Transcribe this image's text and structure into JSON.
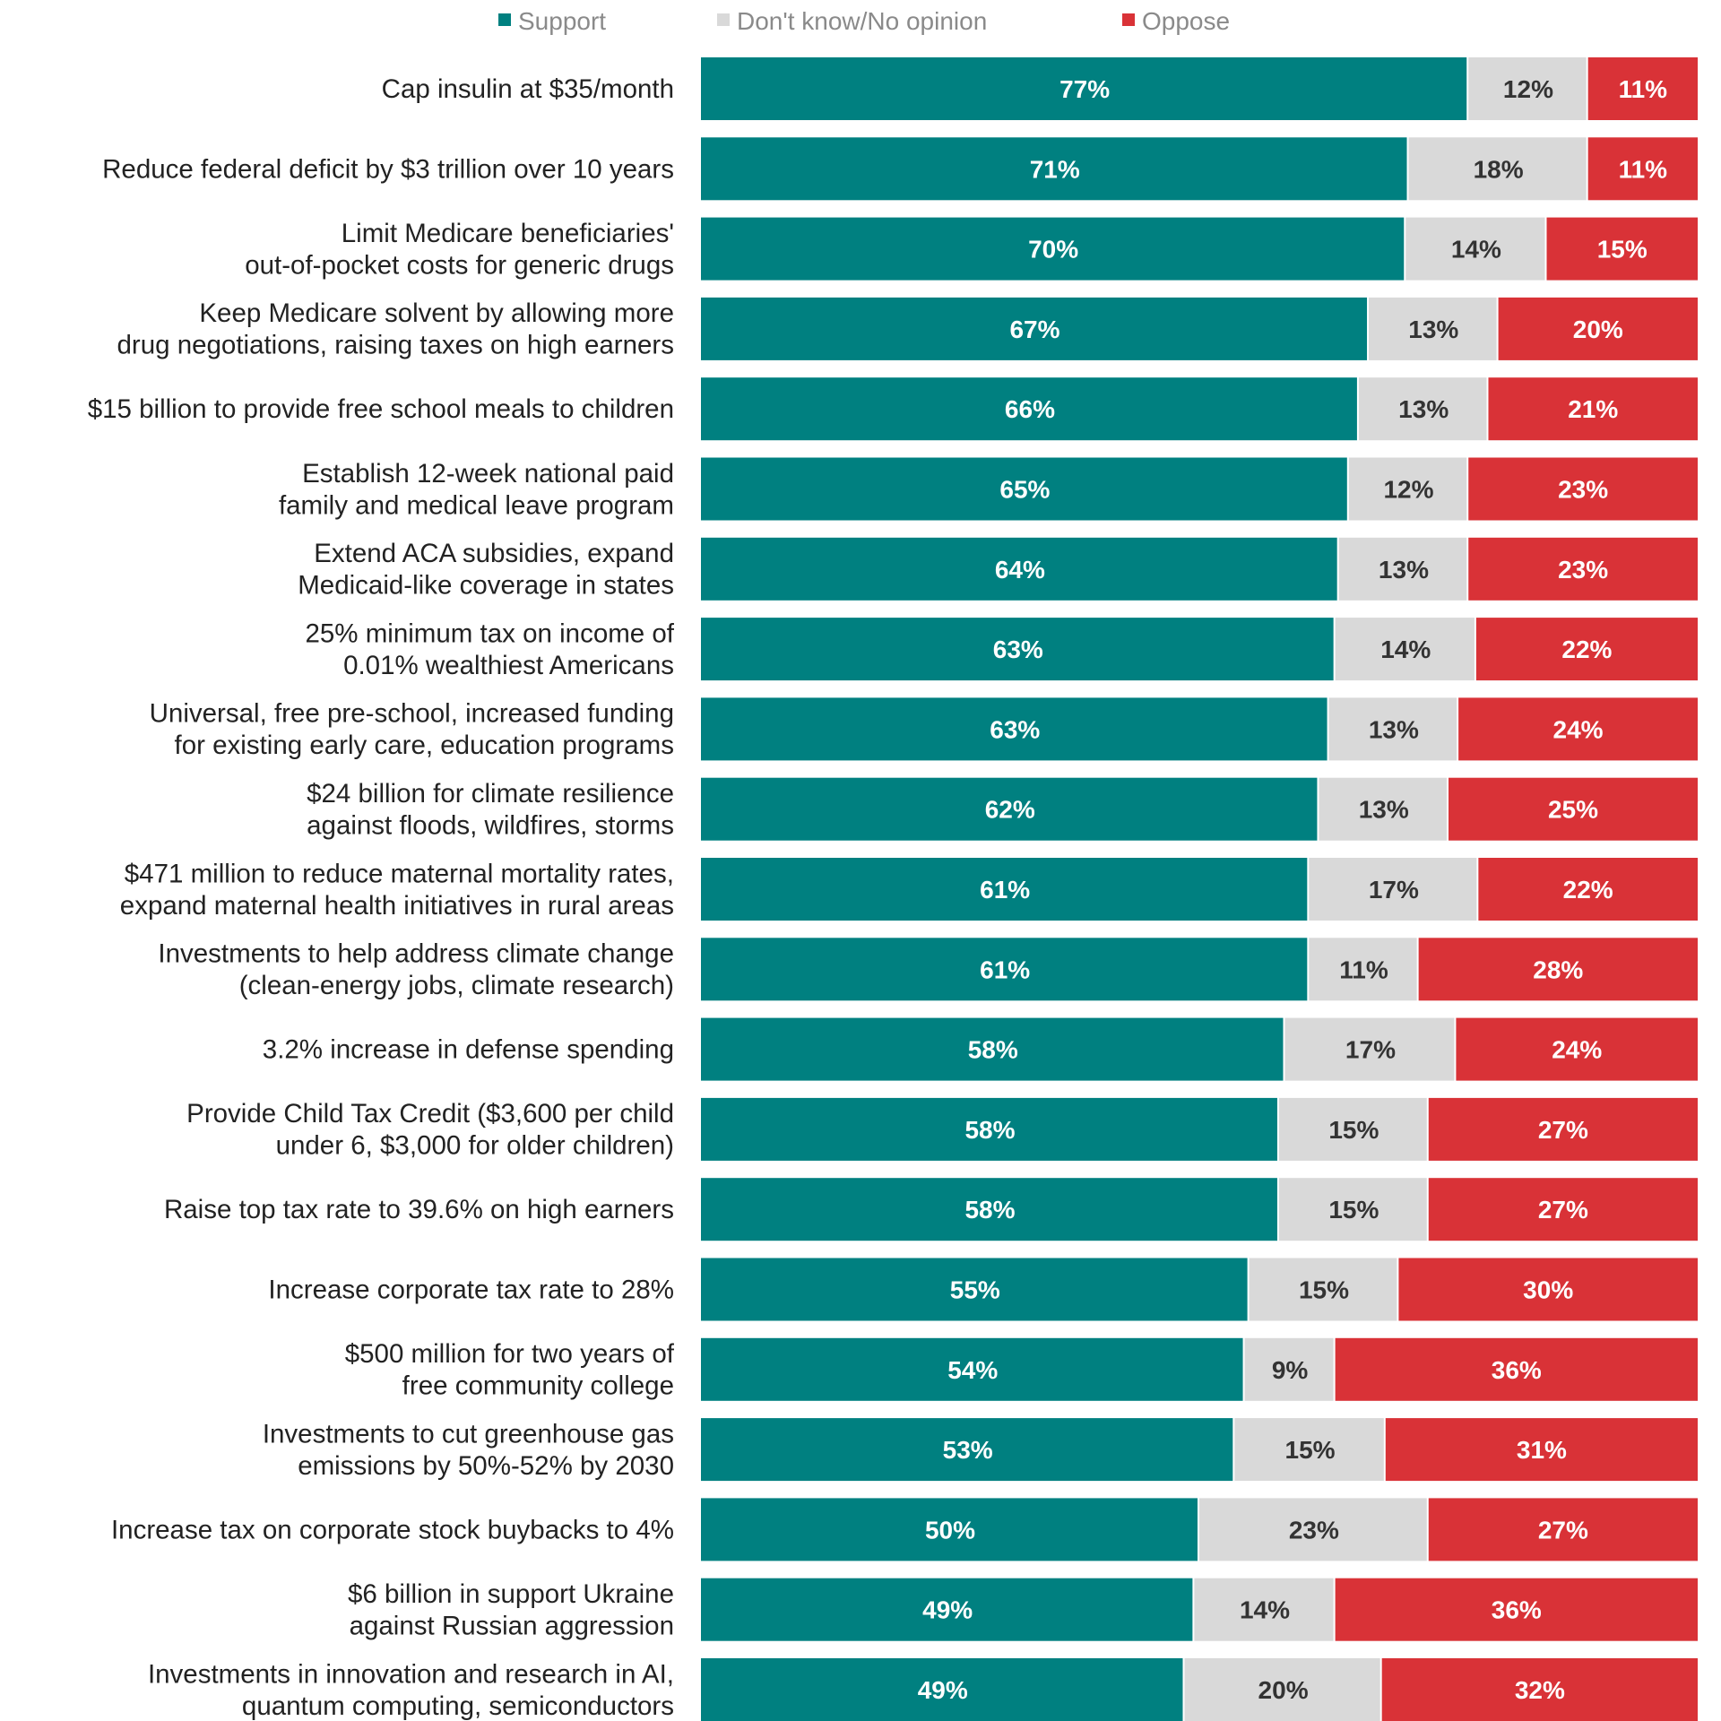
{
  "chart_data": {
    "type": "bar",
    "orientation": "horizontal",
    "stacked": true,
    "value_format": "{v}%",
    "xlim": [
      0,
      100
    ],
    "legend_position": "top",
    "grid": false,
    "colors": {
      "Support": "#008080",
      "Don't know/No opinion": "#d9d9d9",
      "Oppose": "#d93237"
    },
    "label_colors": {
      "Support": "#ffffff",
      "Don't know/No opinion": "#333333",
      "Oppose": "#ffffff"
    },
    "legend": [
      "Support",
      "Don't know/No opinion",
      "Oppose"
    ],
    "categories": [
      [
        "Cap insulin at $35/month"
      ],
      [
        "Reduce federal deficit by $3 trillion over 10 years"
      ],
      [
        "Limit Medicare beneficiaries'",
        "out-of-pocket costs for generic drugs"
      ],
      [
        "Keep Medicare solvent by allowing more",
        "drug negotiations, raising taxes on high earners"
      ],
      [
        "$15 billion to provide free school meals to children"
      ],
      [
        "Establish 12-week national paid",
        "family and medical leave program"
      ],
      [
        "Extend ACA subsidies, expand",
        "Medicaid-like coverage in states"
      ],
      [
        "25% minimum tax on income of",
        "0.01% wealthiest Americans"
      ],
      [
        "Universal, free pre-school, increased funding",
        "for existing early care, education programs"
      ],
      [
        "$24 billion for climate resilience",
        "against floods, wildfires, storms"
      ],
      [
        "$471 million to reduce maternal mortality rates,",
        "expand maternal health initiatives in rural areas"
      ],
      [
        "Investments to help address climate change",
        "(clean-energy jobs, climate research)"
      ],
      [
        "3.2% increase in defense spending"
      ],
      [
        "Provide Child Tax Credit ($3,600 per child",
        "under 6, $3,000 for older children)"
      ],
      [
        "Raise top tax rate to 39.6% on high earners"
      ],
      [
        "Increase corporate tax rate to 28%"
      ],
      [
        "$500 million for two years of",
        "free community college"
      ],
      [
        "Investments to cut greenhouse gas",
        "emissions by 50%-52% by 2030"
      ],
      [
        "Increase tax on corporate stock buybacks to 4%"
      ],
      [
        "$6 billion in support Ukraine",
        "against Russian aggression"
      ],
      [
        "Investments in innovation and research in AI,",
        "quantum computing, semiconductors"
      ]
    ],
    "series": [
      {
        "name": "Support",
        "values": [
          77,
          71,
          70,
          67,
          66,
          65,
          64,
          63,
          63,
          62,
          61,
          61,
          58,
          58,
          58,
          55,
          54,
          53,
          50,
          49,
          49
        ]
      },
      {
        "name": "Don't know/No opinion",
        "values": [
          12,
          18,
          14,
          13,
          13,
          12,
          13,
          14,
          13,
          13,
          17,
          11,
          17,
          15,
          15,
          15,
          9,
          15,
          23,
          14,
          20
        ]
      },
      {
        "name": "Oppose",
        "values": [
          11,
          11,
          15,
          20,
          21,
          23,
          23,
          22,
          24,
          25,
          22,
          28,
          24,
          27,
          27,
          30,
          36,
          31,
          27,
          36,
          32
        ]
      }
    ]
  }
}
